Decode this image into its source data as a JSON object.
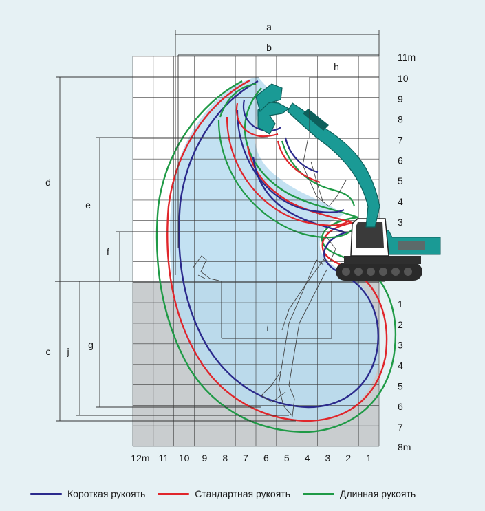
{
  "x_axis": {
    "ticks": [
      "12m",
      "11",
      "10",
      "9",
      "8",
      "7",
      "6",
      "5",
      "4",
      "3",
      "2",
      "1"
    ]
  },
  "y_axis": {
    "top_label": "11m",
    "upper_ticks": [
      "10",
      "9",
      "8",
      "7",
      "6",
      "5",
      "4",
      "3"
    ],
    "lower_ticks": [
      "1",
      "2",
      "3",
      "4",
      "5",
      "6",
      "7"
    ],
    "bottom_label": "8m"
  },
  "dimensions": {
    "a": "a",
    "b": "b",
    "h": "h",
    "d": "d",
    "e": "e",
    "f": "f",
    "c": "c",
    "j": "j",
    "g": "g",
    "i": "i"
  },
  "legend": [
    {
      "label": "Короткая рукоять",
      "color": "#2b2a8c"
    },
    {
      "label": "Стандартная рукоять",
      "color": "#e0262b"
    },
    {
      "label": "Длинная рукоять",
      "color": "#1f9a46"
    }
  ],
  "colors": {
    "background": "#e6f1f4",
    "reach_fill": "#b9dcf0",
    "underground": "#c9cdcf",
    "machine": "#1a9a95"
  }
}
